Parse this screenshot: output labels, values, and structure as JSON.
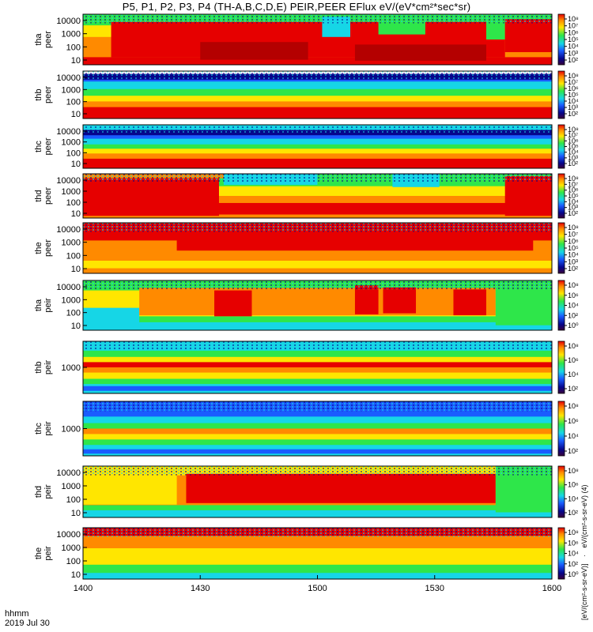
{
  "title": "P5, P1, P2, P3, P4 (TH-A,B,C,D,E) PEIR,PEER EFlux eV/(eV*cm²*sec*sr)",
  "colorbar_label_peer": "eV/(cm²-s-sr-eV) (4)",
  "colorbar_label_peir": "[eV/(cm²-s-sr-eV)]",
  "time_axis": {
    "label_line1": "hhmm",
    "label_line2": "2019 Jul 30",
    "ticks": [
      "1400",
      "1430",
      "1500",
      "1530",
      "1600"
    ]
  },
  "colors": {
    "red": "#e60000",
    "darkred": "#b40000",
    "orange": "#ff8a00",
    "yellow": "#ffe600",
    "green": "#2ee64a",
    "cyan": "#16d6e6",
    "blue": "#1a5cff",
    "navy": "#06068c",
    "white": "#ffffff"
  },
  "chart_data": {
    "type": "heatmap",
    "x": [
      "1400",
      "1430",
      "1500",
      "1530",
      "1600"
    ],
    "panels": [
      {
        "id": "tha-peer",
        "label_line1": "tha",
        "label_line2": "peer",
        "yticks": [
          "10000",
          "1000",
          "100",
          "10"
        ],
        "colorbar_ticks": [
          "10⁸",
          "10⁷",
          "10⁶",
          "10⁵",
          "10⁴",
          "10³",
          "10²"
        ],
        "bands": [
          {
            "y0": 0,
            "y1": 0.22,
            "c": "#2ee64a"
          },
          {
            "y0": 0.22,
            "y1": 0.45,
            "c": "#ffe600"
          },
          {
            "y0": 0.45,
            "y1": 0.85,
            "c": "#ff8a00"
          },
          {
            "y0": 0.85,
            "y1": 1,
            "c": "#e60000"
          }
        ],
        "patches": [
          {
            "x0": 0.06,
            "x1": 0.9,
            "y0": 0.15,
            "y1": 0.85,
            "c": "#e60000"
          },
          {
            "x0": 0.25,
            "x1": 0.48,
            "y0": 0.55,
            "y1": 0.9,
            "c": "#b40000"
          },
          {
            "x0": 0.58,
            "x1": 0.86,
            "y0": 0.6,
            "y1": 0.92,
            "c": "#b40000"
          },
          {
            "x0": 0.51,
            "x1": 0.57,
            "y0": 0.05,
            "y1": 0.45,
            "c": "#16d6e6"
          },
          {
            "x0": 0.63,
            "x1": 0.73,
            "y0": 0.05,
            "y1": 0.4,
            "c": "#2ee64a"
          },
          {
            "x0": 0.86,
            "x1": 0.9,
            "y0": 0.0,
            "y1": 0.5,
            "c": "#2ee64a"
          },
          {
            "x0": 0.9,
            "x1": 1.0,
            "y0": 0.1,
            "y1": 0.75,
            "c": "#e60000"
          }
        ]
      },
      {
        "id": "thb-peer",
        "label_line1": "thb",
        "label_line2": "peer",
        "yticks": [
          "10000",
          "1000",
          "100",
          "10"
        ],
        "colorbar_ticks": [
          "10⁸",
          "10⁷",
          "10⁶",
          "10⁵",
          "10⁴",
          "10³",
          "10²"
        ],
        "bands": [
          {
            "y0": 0,
            "y1": 0.22,
            "c": "#1a5cff"
          },
          {
            "y0": 0.22,
            "y1": 0.38,
            "c": "#16d6e6"
          },
          {
            "y0": 0.38,
            "y1": 0.52,
            "c": "#2ee64a"
          },
          {
            "y0": 0.52,
            "y1": 0.64,
            "c": "#ffe600"
          },
          {
            "y0": 0.64,
            "y1": 0.76,
            "c": "#ff8a00"
          },
          {
            "y0": 0.76,
            "y1": 1,
            "c": "#e60000"
          }
        ],
        "patches": [
          {
            "x0": 0.0,
            "x1": 1.0,
            "y0": 0.0,
            "y1": 0.06,
            "c": "#ffffff"
          },
          {
            "x0": 0.0,
            "x1": 1.0,
            "y0": 0.06,
            "y1": 0.18,
            "c": "#06068c"
          }
        ]
      },
      {
        "id": "thc-peer",
        "label_line1": "thc",
        "label_line2": "peer",
        "yticks": [
          "10000",
          "1000",
          "100",
          "10"
        ],
        "colorbar_ticks": [
          "10⁸",
          "10⁷",
          "10⁶",
          "10⁵",
          "10⁴",
          "10³",
          "10²"
        ],
        "bands": [
          {
            "y0": 0,
            "y1": 0.12,
            "c": "#16d6e6"
          },
          {
            "y0": 0.12,
            "y1": 0.32,
            "c": "#1a5cff"
          },
          {
            "y0": 0.32,
            "y1": 0.45,
            "c": "#16d6e6"
          },
          {
            "y0": 0.45,
            "y1": 0.55,
            "c": "#2ee64a"
          },
          {
            "y0": 0.55,
            "y1": 0.66,
            "c": "#ffe600"
          },
          {
            "y0": 0.66,
            "y1": 0.78,
            "c": "#ff8a00"
          },
          {
            "y0": 0.78,
            "y1": 1,
            "c": "#e60000"
          }
        ],
        "patches": [
          {
            "x0": 0.0,
            "x1": 1.0,
            "y0": 0.12,
            "y1": 0.24,
            "c": "#06068c"
          }
        ]
      },
      {
        "id": "thd-peer",
        "label_line1": "thd",
        "label_line2": "peer",
        "yticks": [
          "10000",
          "1000",
          "100",
          "10"
        ],
        "colorbar_ticks": [
          "10⁸",
          "10⁷",
          "10⁶",
          "10⁵",
          "10⁴",
          "10³",
          "10²"
        ],
        "bands": [
          {
            "y0": 0,
            "y1": 0.28,
            "c": "#2ee64a"
          },
          {
            "y0": 0.28,
            "y1": 0.5,
            "c": "#ffe600"
          },
          {
            "y0": 0.5,
            "y1": 0.66,
            "c": "#ff8a00"
          },
          {
            "y0": 0.66,
            "y1": 0.92,
            "c": "#e60000"
          },
          {
            "y0": 0.92,
            "y1": 1,
            "c": "#ff8a00"
          }
        ],
        "patches": [
          {
            "x0": 0.0,
            "x1": 0.29,
            "y0": 0.05,
            "y1": 0.95,
            "c": "#e60000"
          },
          {
            "x0": 0.0,
            "x1": 0.3,
            "y0": 0.0,
            "y1": 0.1,
            "c": "#ff8a00"
          },
          {
            "x0": 0.3,
            "x1": 0.5,
            "y0": 0.0,
            "y1": 0.25,
            "c": "#16d6e6"
          },
          {
            "x0": 0.66,
            "x1": 0.76,
            "y0": 0.0,
            "y1": 0.3,
            "c": "#16d6e6"
          },
          {
            "x0": 0.9,
            "x1": 1.0,
            "y0": 0.05,
            "y1": 0.95,
            "c": "#e60000"
          }
        ]
      },
      {
        "id": "the-peer",
        "label_line1": "the",
        "label_line2": "peer",
        "yticks": [
          "10000",
          "1000",
          "100",
          "10"
        ],
        "colorbar_ticks": [
          "10⁸",
          "10⁷",
          "10⁶",
          "10⁵",
          "10⁴",
          "10³",
          "10²"
        ],
        "bands": [
          {
            "y0": 0,
            "y1": 0.35,
            "c": "#e60000"
          },
          {
            "y0": 0.35,
            "y1": 0.75,
            "c": "#ff8a00"
          },
          {
            "y0": 0.75,
            "y1": 0.9,
            "c": "#ffe600"
          },
          {
            "y0": 0.9,
            "y1": 1,
            "c": "#ff8a00"
          }
        ],
        "patches": [
          {
            "x0": 0.2,
            "x1": 0.96,
            "y0": 0.08,
            "y1": 0.55,
            "c": "#e60000"
          }
        ]
      },
      {
        "id": "tha-peir",
        "label_line1": "tha",
        "label_line2": "peir",
        "yticks": [
          "10000",
          "1000",
          "100",
          "10"
        ],
        "colorbar_ticks": [
          "10⁸",
          "10⁶",
          "10⁴",
          "10²",
          "10⁰"
        ],
        "bands": [
          {
            "y0": 0,
            "y1": 0.2,
            "c": "#2ee64a"
          },
          {
            "y0": 0.2,
            "y1": 0.72,
            "c": "#ffe600"
          },
          {
            "y0": 0.72,
            "y1": 0.84,
            "c": "#2ee64a"
          },
          {
            "y0": 0.84,
            "y1": 1,
            "c": "#16d6e6"
          }
        ],
        "patches": [
          {
            "x0": 0.0,
            "x1": 0.12,
            "y0": 0.55,
            "y1": 0.95,
            "c": "#16d6e6"
          },
          {
            "x0": 0.12,
            "x1": 0.88,
            "y0": 0.15,
            "y1": 0.7,
            "c": "#ff8a00"
          },
          {
            "x0": 0.28,
            "x1": 0.36,
            "y0": 0.2,
            "y1": 0.72,
            "c": "#e60000"
          },
          {
            "x0": 0.58,
            "x1": 0.63,
            "y0": 0.1,
            "y1": 0.68,
            "c": "#e60000"
          },
          {
            "x0": 0.64,
            "x1": 0.71,
            "y0": 0.14,
            "y1": 0.66,
            "c": "#e60000"
          },
          {
            "x0": 0.79,
            "x1": 0.86,
            "y0": 0.18,
            "y1": 0.7,
            "c": "#e60000"
          },
          {
            "x0": 0.88,
            "x1": 1.0,
            "y0": 0.0,
            "y1": 0.9,
            "c": "#2ee64a"
          }
        ]
      },
      {
        "id": "thb-peir",
        "label_line1": "thb",
        "label_line2": "peir",
        "yticks": [
          "1000"
        ],
        "colorbar_ticks": [
          "10⁸",
          "10⁶",
          "10⁴",
          "10²"
        ],
        "bands": [
          {
            "y0": 0,
            "y1": 0.18,
            "c": "#16d6e6"
          },
          {
            "y0": 0.18,
            "y1": 0.3,
            "c": "#2ee64a"
          },
          {
            "y0": 0.3,
            "y1": 0.4,
            "c": "#ffe600"
          },
          {
            "y0": 0.4,
            "y1": 0.5,
            "c": "#e60000"
          },
          {
            "y0": 0.5,
            "y1": 0.6,
            "c": "#ff8a00"
          },
          {
            "y0": 0.6,
            "y1": 0.72,
            "c": "#ffe600"
          },
          {
            "y0": 0.72,
            "y1": 0.82,
            "c": "#2ee64a"
          },
          {
            "y0": 0.82,
            "y1": 1,
            "c": "#16d6e6"
          }
        ],
        "patches": [
          {
            "x0": 0.0,
            "x1": 1.0,
            "y0": 0.86,
            "y1": 0.95,
            "c": "#1a5cff"
          }
        ]
      },
      {
        "id": "thc-peir",
        "label_line1": "thc",
        "label_line2": "peir",
        "yticks": [
          "1000"
        ],
        "colorbar_ticks": [
          "10⁸",
          "10⁶",
          "10⁴",
          "10²"
        ],
        "bands": [
          {
            "y0": 0,
            "y1": 0.28,
            "c": "#1a5cff"
          },
          {
            "y0": 0.28,
            "y1": 0.4,
            "c": "#16d6e6"
          },
          {
            "y0": 0.4,
            "y1": 0.5,
            "c": "#2ee64a"
          },
          {
            "y0": 0.5,
            "y1": 0.6,
            "c": "#ff8a00"
          },
          {
            "y0": 0.6,
            "y1": 0.7,
            "c": "#ffe600"
          },
          {
            "y0": 0.7,
            "y1": 0.8,
            "c": "#2ee64a"
          },
          {
            "y0": 0.8,
            "y1": 1,
            "c": "#16d6e6"
          }
        ],
        "patches": [
          {
            "x0": 0.0,
            "x1": 1.0,
            "y0": 0.88,
            "y1": 0.96,
            "c": "#1a5cff"
          }
        ]
      },
      {
        "id": "thd-peir",
        "label_line1": "thd",
        "label_line2": "peir",
        "yticks": [
          "10000",
          "1000",
          "100",
          "10"
        ],
        "colorbar_ticks": [
          "10⁸",
          "10⁶",
          "10⁴",
          "10²"
        ],
        "bands": [
          {
            "y0": 0,
            "y1": 0.18,
            "c": "#ffe600"
          },
          {
            "y0": 0.18,
            "y1": 0.76,
            "c": "#ff8a00"
          },
          {
            "y0": 0.76,
            "y1": 0.86,
            "c": "#2ee64a"
          },
          {
            "y0": 0.86,
            "y1": 1,
            "c": "#16d6e6"
          }
        ],
        "patches": [
          {
            "x0": 0.0,
            "x1": 0.2,
            "y0": 0.1,
            "y1": 0.75,
            "c": "#ffe600"
          },
          {
            "x0": 0.22,
            "x1": 0.88,
            "y0": 0.15,
            "y1": 0.72,
            "c": "#e60000"
          },
          {
            "x0": 0.88,
            "x1": 1.0,
            "y0": 0.0,
            "y1": 0.9,
            "c": "#2ee64a"
          }
        ]
      },
      {
        "id": "the-peir",
        "label_line1": "the",
        "label_line2": "peir",
        "yticks": [
          "10000",
          "1000",
          "100",
          "10"
        ],
        "colorbar_ticks": [
          "10⁸",
          "10⁶",
          "10⁴",
          "10²",
          "10⁰"
        ],
        "bands": [
          {
            "y0": 0,
            "y1": 0.16,
            "c": "#e60000"
          },
          {
            "y0": 0.16,
            "y1": 0.4,
            "c": "#ff8a00"
          },
          {
            "y0": 0.4,
            "y1": 0.72,
            "c": "#ffe600"
          },
          {
            "y0": 0.72,
            "y1": 0.88,
            "c": "#2ee64a"
          },
          {
            "y0": 0.88,
            "y1": 1,
            "c": "#16d6e6"
          }
        ],
        "patches": []
      }
    ]
  }
}
